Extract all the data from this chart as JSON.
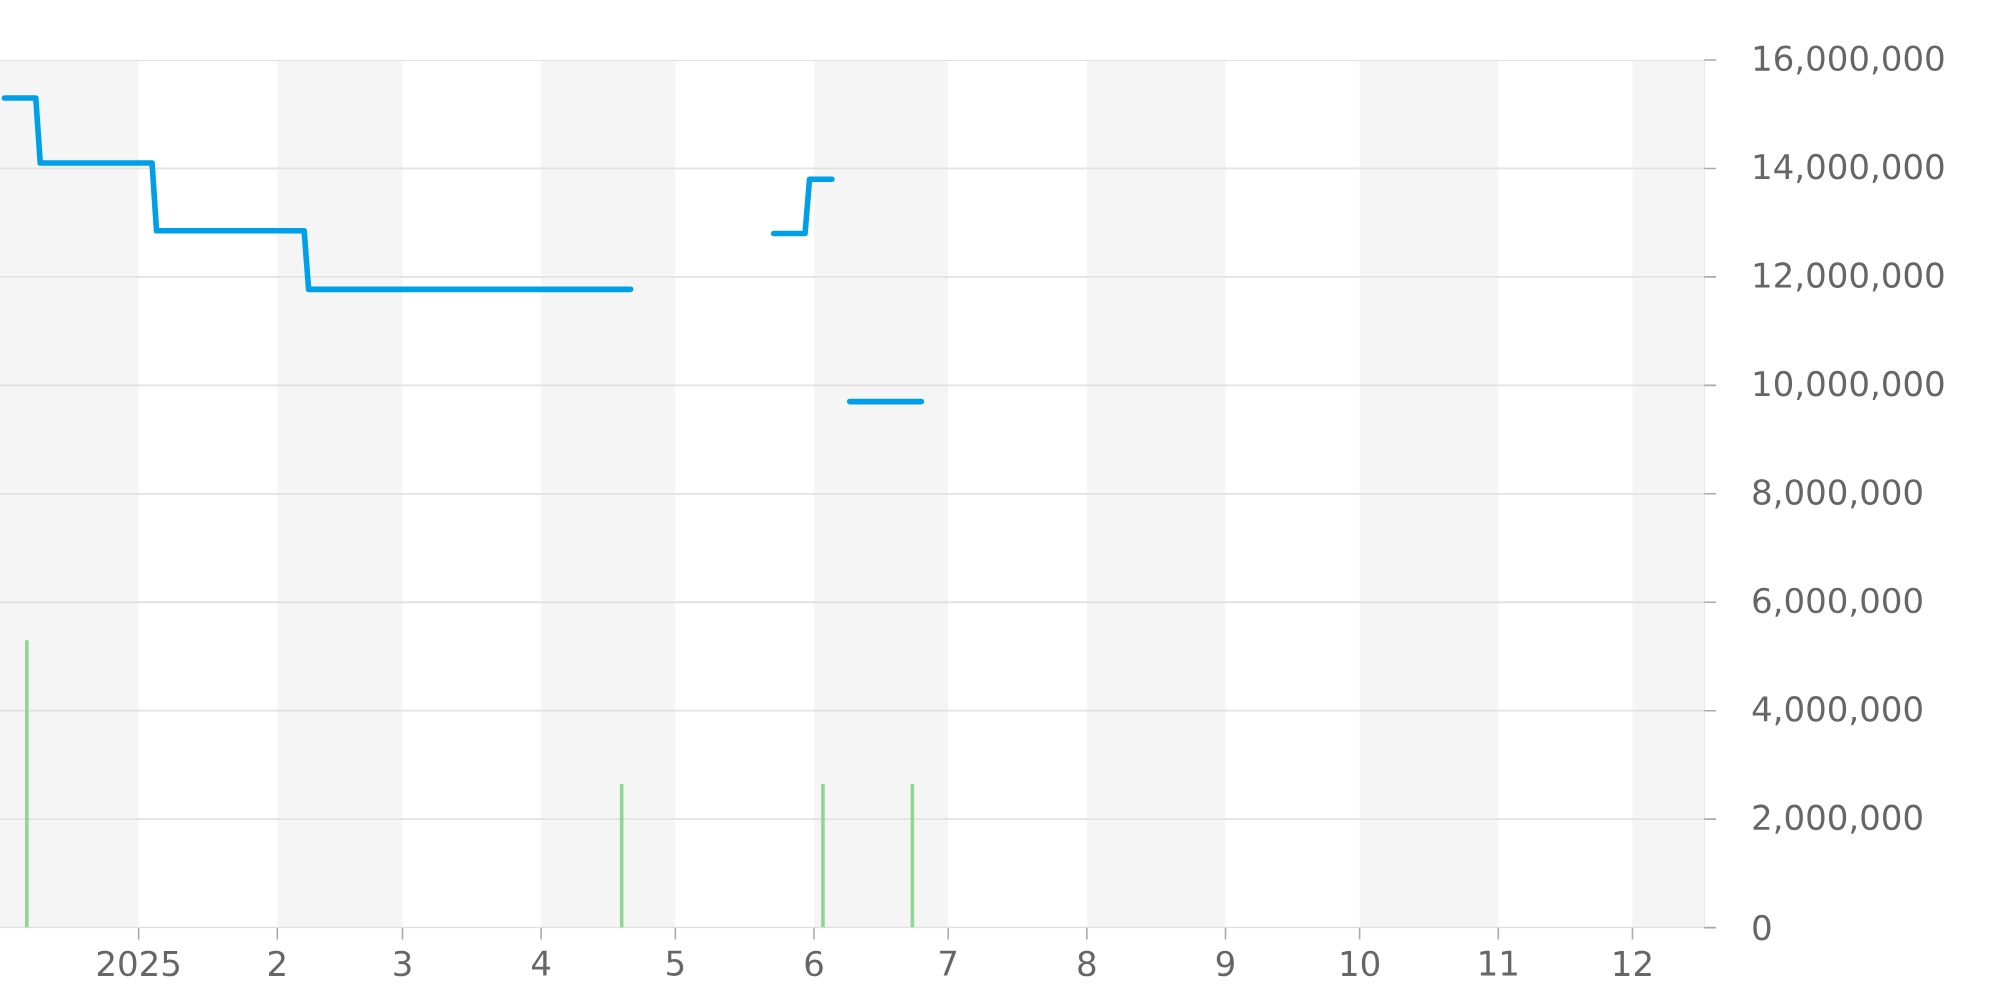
{
  "chart_data": {
    "type": "line",
    "xlim": [
      "2024-12-01",
      "2025-12-17"
    ],
    "xticks": [
      {
        "value": "2025-01-01",
        "label": "2025"
      },
      {
        "value": "2025-02-01",
        "label": "2"
      },
      {
        "value": "2025-03-01",
        "label": "3"
      },
      {
        "value": "2025-04-01",
        "label": "4"
      },
      {
        "value": "2025-05-01",
        "label": "5"
      },
      {
        "value": "2025-06-01",
        "label": "6"
      },
      {
        "value": "2025-07-01",
        "label": "7"
      },
      {
        "value": "2025-08-01",
        "label": "8"
      },
      {
        "value": "2025-09-01",
        "label": "9"
      },
      {
        "value": "2025-10-01",
        "label": "10"
      },
      {
        "value": "2025-11-01",
        "label": "11"
      },
      {
        "value": "2025-12-01",
        "label": "12"
      }
    ],
    "ylim": [
      0,
      16000000
    ],
    "yticks": [
      {
        "value": 0,
        "label": "0"
      },
      {
        "value": 2000000,
        "label": "2,000,000"
      },
      {
        "value": 4000000,
        "label": "4,000,000"
      },
      {
        "value": 6000000,
        "label": "6,000,000"
      },
      {
        "value": 8000000,
        "label": "8,000,000"
      },
      {
        "value": 10000000,
        "label": "10,000,000"
      },
      {
        "value": 12000000,
        "label": "12,000,000"
      },
      {
        "value": 14000000,
        "label": "14,000,000"
      },
      {
        "value": 16000000,
        "label": "16,000,000"
      }
    ],
    "grid": "y",
    "bands": [
      {
        "axis": "x",
        "from": "2024-12-01",
        "to": "2025-01-01",
        "color": "#f5f5f5"
      },
      {
        "axis": "x",
        "from": "2025-02-01",
        "to": "2025-03-01",
        "color": "#f5f5f5"
      },
      {
        "axis": "x",
        "from": "2025-04-01",
        "to": "2025-05-01",
        "color": "#f5f5f5"
      },
      {
        "axis": "x",
        "from": "2025-06-01",
        "to": "2025-07-01",
        "color": "#f5f5f5"
      },
      {
        "axis": "x",
        "from": "2025-08-01",
        "to": "2025-09-01",
        "color": "#f5f5f5"
      },
      {
        "axis": "x",
        "from": "2025-10-01",
        "to": "2025-11-01",
        "color": "#f5f5f5"
      },
      {
        "axis": "x",
        "from": "2025-12-01",
        "to": "2025-12-17",
        "color": "#f5f5f5"
      }
    ],
    "series": [
      {
        "type": "bar",
        "color": "#8fd694",
        "x": [
          "2024-12-07",
          "2025-04-19",
          "2025-06-03",
          "2025-06-23"
        ],
        "values": [
          5300000,
          2650000,
          2650000,
          2650000
        ]
      },
      {
        "color": "#00a0e9",
        "x": [
          "2024-12-02",
          "2024-12-09",
          "2024-12-10",
          "2025-01-04",
          "2025-01-05",
          "2025-02-07",
          "2025-02-08",
          "2025-04-21",
          "2025-04-22",
          "2025-05-23",
          "2025-05-30",
          "2025-05-31",
          "2025-06-05",
          "2025-06-07",
          "2025-06-09",
          "2025-06-25"
        ],
        "values": [
          15300000,
          15300000,
          14100000,
          14100000,
          12850000,
          12850000,
          11770000,
          11770000,
          null,
          12800000,
          12800000,
          13800000,
          13800000,
          null,
          9700000,
          9700000
        ]
      }
    ]
  }
}
